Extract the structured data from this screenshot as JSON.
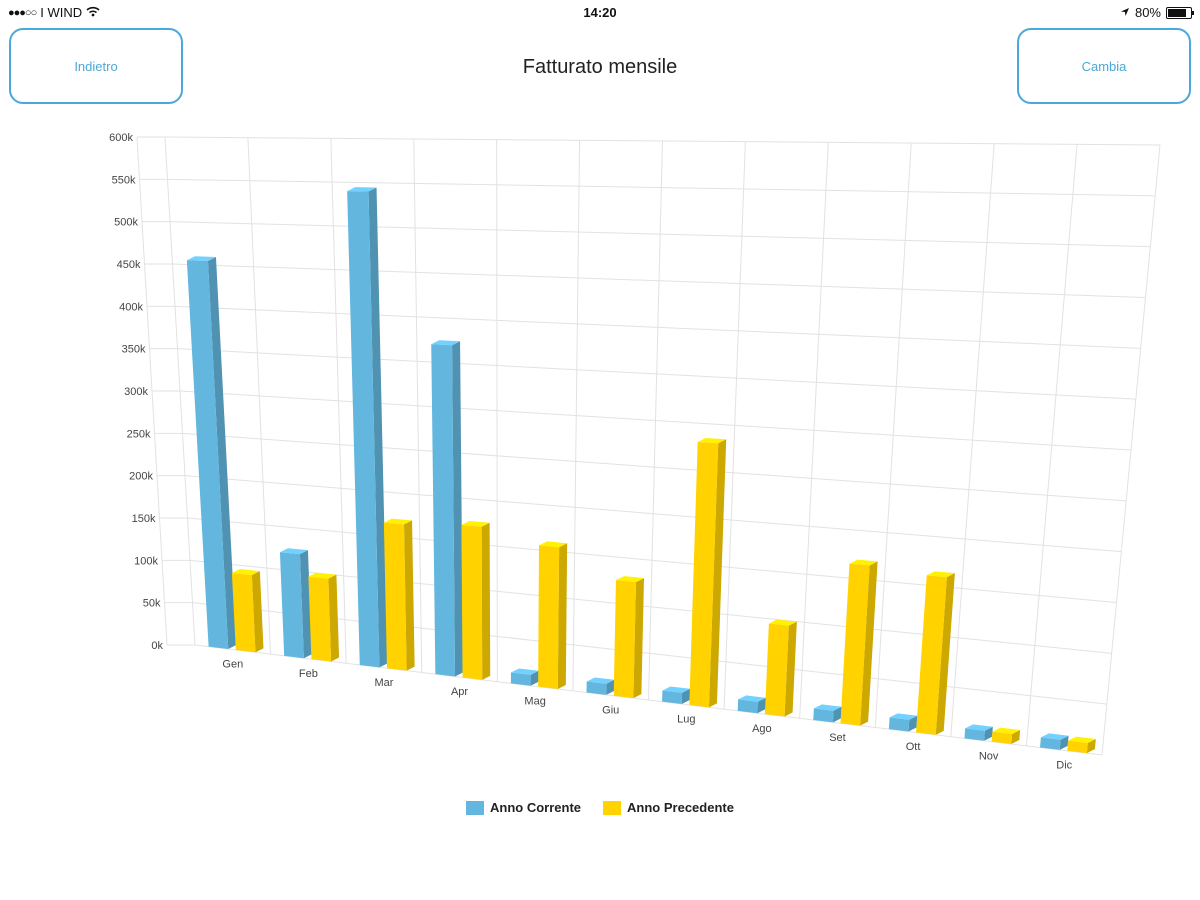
{
  "status_bar": {
    "carrier": "I WIND",
    "time": "14:20",
    "battery": "80%",
    "battery_level": 0.8,
    "icons": [
      "signal-dots-icon",
      "wifi-icon",
      "location-arrow-icon",
      "battery-icon"
    ]
  },
  "header": {
    "back_label": "Indietro",
    "title": "Fatturato mensile",
    "change_label": "Cambia"
  },
  "colors": {
    "accent": "#4aa9d8",
    "current_year": "#63b6de",
    "previous_year": "#ffd200",
    "grid": "#e2e2e2"
  },
  "chart_data": {
    "type": "bar",
    "title": "",
    "xlabel": "",
    "ylabel": "",
    "ylim": [
      0,
      600000
    ],
    "y_ticks": [
      "0k",
      "50k",
      "100k",
      "150k",
      "200k",
      "250k",
      "300k",
      "350k",
      "400k",
      "450k",
      "500k",
      "550k",
      "600k"
    ],
    "categories": [
      "Gen",
      "Feb",
      "Mar",
      "Apr",
      "Mag",
      "Giu",
      "Lug",
      "Ago",
      "Set",
      "Ott",
      "Nov",
      "Dic"
    ],
    "series": [
      {
        "name": "Anno Corrente",
        "values": [
          455000,
          120000,
          540000,
          370000,
          12000,
          12000,
          12000,
          12000,
          12000,
          12000,
          10000,
          10000
        ]
      },
      {
        "name": "Anno Precedente",
        "values": [
          90000,
          95000,
          165000,
          170000,
          155000,
          125000,
          280000,
          95000,
          165000,
          160000,
          10000,
          10000
        ]
      }
    ],
    "grid": true,
    "legend_position": "bottom-center",
    "projection": "3d"
  }
}
